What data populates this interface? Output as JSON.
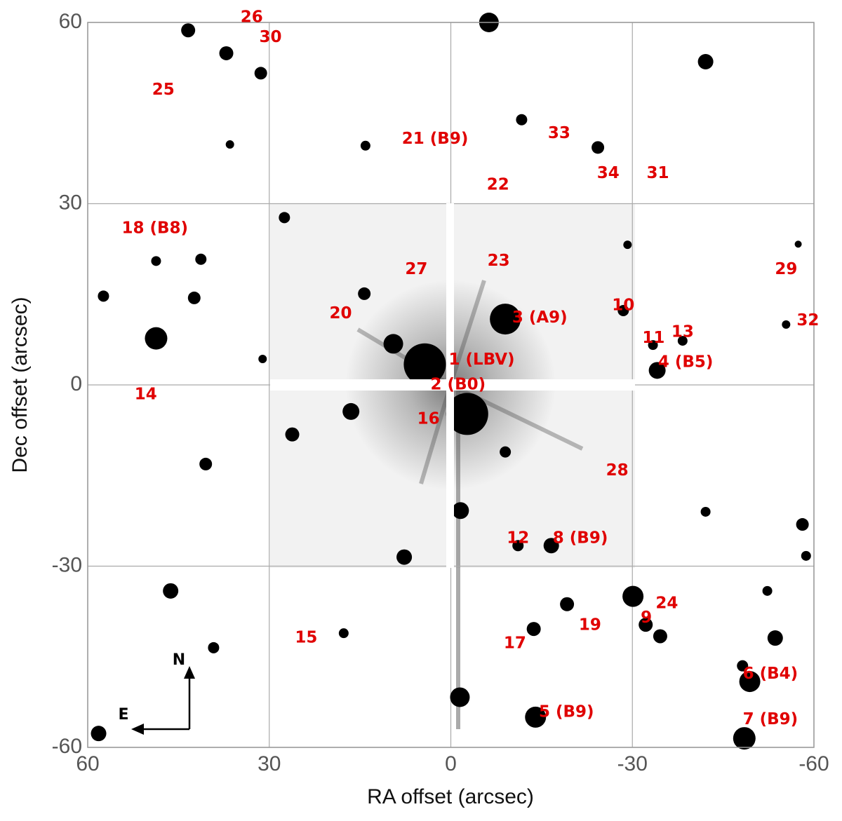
{
  "chart_data": {
    "type": "scatter",
    "x_label": "RA offset (arcsec)",
    "y_label": "Dec offset (arcsec)",
    "xlim": [
      60,
      -60
    ],
    "ylim": [
      -60,
      60
    ],
    "xticks": [
      60,
      30,
      0,
      -30,
      -60
    ],
    "yticks": [
      60,
      30,
      0,
      -30,
      -60
    ],
    "grid": true,
    "series": [
      {
        "color": "#000000",
        "x": [
          48.7,
          43.4,
          37.1,
          31.4,
          -6.3,
          -42.1,
          -11.7,
          -24.3,
          14.1,
          36.5,
          27.5,
          14.3,
          42.4,
          41.3,
          48.7,
          57.4,
          31.1,
          -9.0,
          -34.1,
          -28.5,
          -38.3,
          -33.4,
          -55.4,
          -57.4,
          -29.2,
          4.3,
          9.5,
          -2.7,
          16.5,
          26.2,
          40.5,
          -9.0,
          -1.6,
          7.7,
          -16.6,
          -11.1,
          -30.1,
          -19.2,
          -13.7,
          -32.2,
          -34.6,
          -53.6,
          -49.4,
          -48.2,
          -48.5,
          -14.0,
          -1.5,
          -58.1,
          -58.7,
          46.3,
          58.2,
          39.2,
          17.7,
          -52.3,
          -42.1
        ],
        "y": [
          7.7,
          58.7,
          54.9,
          51.6,
          60.0,
          53.5,
          43.9,
          39.3,
          39.6,
          39.8,
          27.7,
          15.1,
          14.4,
          20.8,
          20.5,
          14.7,
          4.3,
          10.9,
          2.4,
          12.3,
          7.3,
          6.6,
          10.0,
          23.3,
          23.2,
          3.4,
          6.8,
          -4.8,
          -4.4,
          -8.2,
          -13.1,
          -11.1,
          -20.8,
          -28.5,
          -26.6,
          -26.6,
          -35.0,
          -36.3,
          -40.4,
          -39.7,
          -41.6,
          -41.9,
          -49.1,
          -46.5,
          -58.5,
          -55.0,
          -51.7,
          -23.1,
          -28.3,
          -34.1,
          -57.7,
          -43.5,
          -41.1,
          -34.1,
          -21.0
        ],
        "sizes": [
          16,
          10,
          10,
          9,
          14,
          11,
          8,
          9,
          7,
          6,
          8,
          9,
          9,
          8,
          7,
          8,
          6,
          22,
          12,
          8,
          7,
          7,
          6,
          5,
          6,
          30,
          14,
          30,
          12,
          10,
          9,
          8,
          12,
          11,
          11,
          8,
          15,
          10,
          10,
          10,
          10,
          11,
          15,
          8,
          16,
          15,
          14,
          9,
          7,
          11,
          11,
          8,
          7,
          7,
          7
        ]
      }
    ],
    "annotations": [
      {
        "text": "26",
        "x": 32.9,
        "y": 60.8
      },
      {
        "text": "30",
        "x": 29.8,
        "y": 57.5
      },
      {
        "text": "25",
        "x": 47.5,
        "y": 48.8
      },
      {
        "text": "21 (B9)",
        "x": 2.6,
        "y": 40.7
      },
      {
        "text": "33",
        "x": -17.9,
        "y": 41.6
      },
      {
        "text": "34",
        "x": -26.0,
        "y": 35.0
      },
      {
        "text": "31",
        "x": -34.2,
        "y": 35.0
      },
      {
        "text": "22",
        "x": -7.8,
        "y": 33.1
      },
      {
        "text": "18 (B8)",
        "x": 48.9,
        "y": 25.9
      },
      {
        "text": "27",
        "x": 5.7,
        "y": 19.1
      },
      {
        "text": "23",
        "x": -7.9,
        "y": 20.5
      },
      {
        "text": "29",
        "x": -55.4,
        "y": 19.1
      },
      {
        "text": "10",
        "x": -28.5,
        "y": 13.1
      },
      {
        "text": "20",
        "x": 18.2,
        "y": 11.8
      },
      {
        "text": "3 (A9)",
        "x": -14.7,
        "y": 11.1
      },
      {
        "text": "32",
        "x": -59.0,
        "y": 10.6
      },
      {
        "text": "11",
        "x": -33.5,
        "y": 7.7
      },
      {
        "text": "13",
        "x": -38.3,
        "y": 8.7
      },
      {
        "text": "1 (LBV)",
        "x": -5.1,
        "y": 4.1
      },
      {
        "text": "4 (B5)",
        "x": -38.8,
        "y": 3.7
      },
      {
        "text": "2 (B0)",
        "x": -1.2,
        "y": 0
      },
      {
        "text": "14",
        "x": 50.4,
        "y": -1.6
      },
      {
        "text": "16",
        "x": 3.7,
        "y": -5.7
      },
      {
        "text": "28",
        "x": -27.5,
        "y": -14.2
      },
      {
        "text": "12",
        "x": -11.1,
        "y": -25.4
      },
      {
        "text": "8 (B9)",
        "x": -21.4,
        "y": -25.4
      },
      {
        "text": "24",
        "x": -35.7,
        "y": -36.2
      },
      {
        "text": "9",
        "x": -32.3,
        "y": -38.6
      },
      {
        "text": "19",
        "x": -23.0,
        "y": -39.8
      },
      {
        "text": "15",
        "x": 23.9,
        "y": -41.9
      },
      {
        "text": "17",
        "x": -10.6,
        "y": -42.8
      },
      {
        "text": "6 (B4)",
        "x": -52.8,
        "y": -47.9
      },
      {
        "text": "5 (B9)",
        "x": -19.1,
        "y": -54.2
      },
      {
        "text": "7 (B9)",
        "x": -52.8,
        "y": -55.4
      }
    ],
    "compass": {
      "north": "N",
      "east": "E"
    }
  }
}
